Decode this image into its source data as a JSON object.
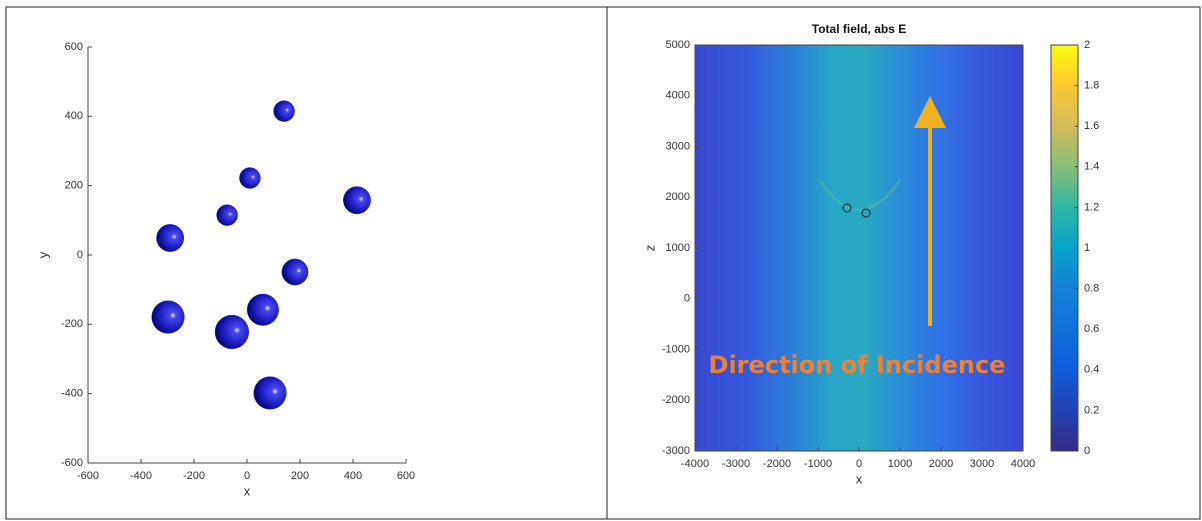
{
  "chart_data": [
    {
      "type": "bubble",
      "x_label": "x",
      "y_label": "y",
      "x": [
        140,
        11,
        -75,
        415,
        -290,
        181,
        60,
        -298,
        -57,
        87
      ],
      "values": [
        415,
        222,
        115,
        158,
        49,
        -49,
        -158,
        -179,
        -222,
        -398
      ],
      "sizes": [
        75,
        75,
        75,
        98,
        98,
        94,
        113,
        117,
        121,
        117
      ],
      "color": "#1a1ad6",
      "xlim": [
        -600,
        600
      ],
      "xticks": [
        -600,
        -400,
        -200,
        0,
        200,
        400,
        600
      ],
      "ylim": [
        -600,
        600
      ],
      "yticks": [
        -600,
        -400,
        -200,
        0,
        200,
        400,
        600
      ]
    },
    {
      "type": "heatmap",
      "title": "Total field, abs E",
      "x_label": "x",
      "y_label": "z",
      "annotation": "Direction of Incidence",
      "xlim": [
        -4000,
        4000
      ],
      "xticks": [
        -4000,
        -3000,
        -2000,
        -1000,
        0,
        1000,
        2000,
        3000,
        4000
      ],
      "ylim": [
        -3000,
        5000
      ],
      "yticks": [
        -3000,
        -2000,
        -1000,
        0,
        1000,
        2000,
        3000,
        4000,
        5000
      ],
      "clim": [
        0,
        2
      ],
      "cticks": [
        0,
        0.2,
        0.4,
        0.6,
        0.8,
        1,
        1.2,
        1.4,
        1.6,
        1.8,
        2
      ]
    }
  ]
}
